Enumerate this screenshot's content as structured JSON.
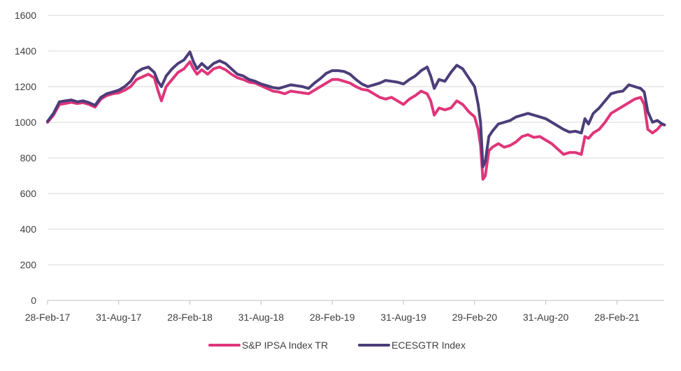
{
  "chart_data": {
    "type": "line",
    "title": "",
    "xlabel": "",
    "ylabel": "",
    "ylim": [
      0,
      1600
    ],
    "y_ticks": [
      0,
      200,
      400,
      600,
      800,
      1000,
      1200,
      1400,
      1600
    ],
    "x_ticks": [
      {
        "label": "28-Feb-17",
        "t": 0
      },
      {
        "label": "31-Aug-17",
        "t": 6
      },
      {
        "label": "28-Feb-18",
        "t": 12
      },
      {
        "label": "31-Aug-18",
        "t": 18
      },
      {
        "label": "28-Feb-19",
        "t": 24
      },
      {
        "label": "31-Aug-19",
        "t": 30
      },
      {
        "label": "29-Feb-20",
        "t": 36
      },
      {
        "label": "31-Aug-20",
        "t": 42
      },
      {
        "label": "28-Feb-21",
        "t": 48
      }
    ],
    "x_range": [
      0,
      52
    ],
    "grid": "horizontal",
    "legend_position": "bottom-center",
    "series": [
      {
        "name": "S&P IPSA Index TR",
        "color": "#e0357a",
        "points": [
          [
            0,
            1000
          ],
          [
            0.5,
            1040
          ],
          [
            1,
            1100
          ],
          [
            1.5,
            1105
          ],
          [
            2,
            1112
          ],
          [
            2.5,
            1105
          ],
          [
            3,
            1110
          ],
          [
            3.5,
            1100
          ],
          [
            4,
            1085
          ],
          [
            4.5,
            1130
          ],
          [
            5,
            1150
          ],
          [
            5.5,
            1160
          ],
          [
            6,
            1165
          ],
          [
            6.5,
            1180
          ],
          [
            7,
            1200
          ],
          [
            7.5,
            1240
          ],
          [
            8,
            1255
          ],
          [
            8.5,
            1270
          ],
          [
            9,
            1250
          ],
          [
            9.3,
            1180
          ],
          [
            9.6,
            1120
          ],
          [
            10,
            1200
          ],
          [
            10.5,
            1240
          ],
          [
            11,
            1280
          ],
          [
            11.5,
            1300
          ],
          [
            12,
            1340
          ],
          [
            12.3,
            1300
          ],
          [
            12.6,
            1270
          ],
          [
            13,
            1295
          ],
          [
            13.5,
            1270
          ],
          [
            14,
            1300
          ],
          [
            14.5,
            1310
          ],
          [
            15,
            1295
          ],
          [
            15.5,
            1270
          ],
          [
            16,
            1250
          ],
          [
            16.5,
            1240
          ],
          [
            17,
            1225
          ],
          [
            17.5,
            1220
          ],
          [
            18,
            1205
          ],
          [
            18.5,
            1190
          ],
          [
            19,
            1175
          ],
          [
            19.5,
            1170
          ],
          [
            20,
            1160
          ],
          [
            20.5,
            1175
          ],
          [
            21,
            1170
          ],
          [
            21.5,
            1165
          ],
          [
            22,
            1160
          ],
          [
            22.5,
            1180
          ],
          [
            23,
            1200
          ],
          [
            23.5,
            1220
          ],
          [
            24,
            1240
          ],
          [
            24.5,
            1240
          ],
          [
            25,
            1230
          ],
          [
            25.5,
            1220
          ],
          [
            26,
            1200
          ],
          [
            26.5,
            1185
          ],
          [
            27,
            1180
          ],
          [
            27.5,
            1160
          ],
          [
            28,
            1140
          ],
          [
            28.5,
            1130
          ],
          [
            29,
            1140
          ],
          [
            29.5,
            1120
          ],
          [
            30,
            1100
          ],
          [
            30.5,
            1130
          ],
          [
            31,
            1150
          ],
          [
            31.5,
            1175
          ],
          [
            32,
            1160
          ],
          [
            32.3,
            1120
          ],
          [
            32.6,
            1040
          ],
          [
            33,
            1080
          ],
          [
            33.5,
            1070
          ],
          [
            34,
            1080
          ],
          [
            34.5,
            1120
          ],
          [
            35,
            1100
          ],
          [
            35.5,
            1060
          ],
          [
            36,
            1030
          ],
          [
            36.3,
            960
          ],
          [
            36.5,
            870
          ],
          [
            36.7,
            680
          ],
          [
            36.9,
            700
          ],
          [
            37.2,
            840
          ],
          [
            37.5,
            860
          ],
          [
            38,
            880
          ],
          [
            38.5,
            860
          ],
          [
            39,
            870
          ],
          [
            39.5,
            890
          ],
          [
            40,
            920
          ],
          [
            40.5,
            930
          ],
          [
            41,
            915
          ],
          [
            41.5,
            920
          ],
          [
            42,
            900
          ],
          [
            42.5,
            880
          ],
          [
            43,
            850
          ],
          [
            43.5,
            820
          ],
          [
            44,
            830
          ],
          [
            44.5,
            830
          ],
          [
            45,
            820
          ],
          [
            45.3,
            920
          ],
          [
            45.6,
            910
          ],
          [
            46,
            940
          ],
          [
            46.5,
            960
          ],
          [
            47,
            1000
          ],
          [
            47.5,
            1050
          ],
          [
            48,
            1070
          ],
          [
            48.5,
            1090
          ],
          [
            49,
            1110
          ],
          [
            49.5,
            1130
          ],
          [
            50,
            1140
          ],
          [
            50.3,
            1100
          ],
          [
            50.6,
            960
          ],
          [
            51,
            940
          ],
          [
            51.4,
            960
          ],
          [
            51.8,
            990
          ],
          [
            52,
            985
          ]
        ]
      },
      {
        "name": "ECESGTR Index",
        "color": "#4c3d7a",
        "points": [
          [
            0,
            1005
          ],
          [
            0.5,
            1050
          ],
          [
            1,
            1115
          ],
          [
            1.5,
            1120
          ],
          [
            2,
            1125
          ],
          [
            2.5,
            1115
          ],
          [
            3,
            1120
          ],
          [
            3.5,
            1110
          ],
          [
            4,
            1095
          ],
          [
            4.5,
            1140
          ],
          [
            5,
            1160
          ],
          [
            5.5,
            1170
          ],
          [
            6,
            1180
          ],
          [
            6.5,
            1200
          ],
          [
            7,
            1230
          ],
          [
            7.5,
            1280
          ],
          [
            8,
            1300
          ],
          [
            8.5,
            1310
          ],
          [
            9,
            1280
          ],
          [
            9.3,
            1230
          ],
          [
            9.6,
            1200
          ],
          [
            10,
            1260
          ],
          [
            10.5,
            1300
          ],
          [
            11,
            1330
          ],
          [
            11.5,
            1350
          ],
          [
            12,
            1395
          ],
          [
            12.3,
            1340
          ],
          [
            12.6,
            1300
          ],
          [
            13,
            1330
          ],
          [
            13.5,
            1300
          ],
          [
            14,
            1330
          ],
          [
            14.5,
            1345
          ],
          [
            15,
            1330
          ],
          [
            15.5,
            1300
          ],
          [
            16,
            1270
          ],
          [
            16.5,
            1260
          ],
          [
            17,
            1240
          ],
          [
            17.5,
            1230
          ],
          [
            18,
            1215
          ],
          [
            18.5,
            1205
          ],
          [
            19,
            1195
          ],
          [
            19.5,
            1190
          ],
          [
            20,
            1200
          ],
          [
            20.5,
            1210
          ],
          [
            21,
            1205
          ],
          [
            21.5,
            1200
          ],
          [
            22,
            1190
          ],
          [
            22.5,
            1220
          ],
          [
            23,
            1245
          ],
          [
            23.5,
            1275
          ],
          [
            24,
            1290
          ],
          [
            24.5,
            1290
          ],
          [
            25,
            1285
          ],
          [
            25.5,
            1270
          ],
          [
            26,
            1240
          ],
          [
            26.5,
            1215
          ],
          [
            27,
            1200
          ],
          [
            27.5,
            1210
          ],
          [
            28,
            1220
          ],
          [
            28.5,
            1235
          ],
          [
            29,
            1230
          ],
          [
            29.5,
            1225
          ],
          [
            30,
            1215
          ],
          [
            30.5,
            1240
          ],
          [
            31,
            1260
          ],
          [
            31.5,
            1290
          ],
          [
            32,
            1310
          ],
          [
            32.3,
            1260
          ],
          [
            32.6,
            1190
          ],
          [
            33,
            1240
          ],
          [
            33.5,
            1230
          ],
          [
            34,
            1280
          ],
          [
            34.5,
            1320
          ],
          [
            35,
            1300
          ],
          [
            35.5,
            1250
          ],
          [
            36,
            1200
          ],
          [
            36.3,
            1100
          ],
          [
            36.5,
            1000
          ],
          [
            36.7,
            750
          ],
          [
            36.9,
            780
          ],
          [
            37.2,
            920
          ],
          [
            37.5,
            950
          ],
          [
            38,
            990
          ],
          [
            38.5,
            1000
          ],
          [
            39,
            1010
          ],
          [
            39.5,
            1030
          ],
          [
            40,
            1040
          ],
          [
            40.5,
            1050
          ],
          [
            41,
            1040
          ],
          [
            41.5,
            1030
          ],
          [
            42,
            1020
          ],
          [
            42.5,
            1000
          ],
          [
            43,
            980
          ],
          [
            43.5,
            960
          ],
          [
            44,
            945
          ],
          [
            44.5,
            950
          ],
          [
            45,
            940
          ],
          [
            45.3,
            1020
          ],
          [
            45.6,
            990
          ],
          [
            46,
            1050
          ],
          [
            46.5,
            1080
          ],
          [
            47,
            1120
          ],
          [
            47.5,
            1160
          ],
          [
            48,
            1170
          ],
          [
            48.5,
            1175
          ],
          [
            49,
            1210
          ],
          [
            49.5,
            1200
          ],
          [
            50,
            1190
          ],
          [
            50.3,
            1170
          ],
          [
            50.6,
            1060
          ],
          [
            51,
            1000
          ],
          [
            51.4,
            1010
          ],
          [
            51.8,
            990
          ],
          [
            52,
            985
          ]
        ]
      }
    ]
  }
}
